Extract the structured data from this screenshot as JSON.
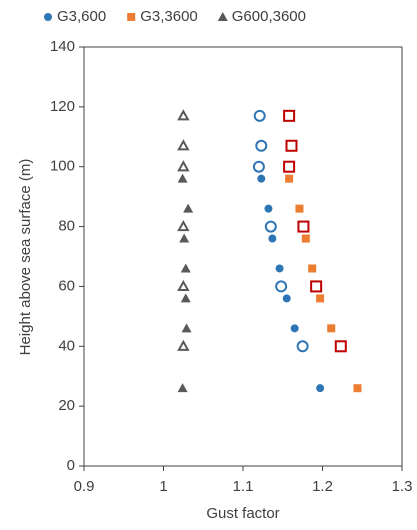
{
  "chart_data": {
    "type": "scatter",
    "xlabel": "Gust factor",
    "ylabel": "Height above sea surface (m)",
    "xlim": [
      0.9,
      1.3
    ],
    "xticks": [
      0.9,
      1,
      1.1,
      1.2,
      1.3
    ],
    "ylim": [
      0,
      140
    ],
    "yticks": [
      0,
      20,
      40,
      60,
      80,
      100,
      120,
      140
    ],
    "legend": "top",
    "series": [
      {
        "name": "G3,600",
        "color": "#2e75b6",
        "marker": "circle",
        "filled": true,
        "x": [
          1.123,
          1.132,
          1.137,
          1.146,
          1.155,
          1.165,
          1.197
        ],
        "values": [
          96,
          86,
          76,
          66,
          56,
          46,
          26
        ]
      },
      {
        "name": "G3,3600",
        "color": "#ed7d31",
        "marker": "square",
        "filled": true,
        "x": [
          1.158,
          1.171,
          1.179,
          1.187,
          1.197,
          1.211,
          1.244
        ],
        "values": [
          96,
          86,
          76,
          66,
          56,
          46,
          26
        ]
      },
      {
        "name": "G600,3600",
        "color": "#595959",
        "marker": "triangle",
        "filled": true,
        "x": [
          1.024,
          1.031,
          1.026,
          1.028,
          1.028,
          1.029,
          1.024
        ],
        "values": [
          96,
          86,
          76,
          66,
          56,
          46,
          26
        ]
      },
      {
        "color": "#2e75b6",
        "marker": "circle",
        "filled": false,
        "x": [
          1.121,
          1.123,
          1.12,
          1.135,
          1.148,
          1.175
        ],
        "values": [
          117,
          107,
          100,
          80,
          60,
          40
        ]
      },
      {
        "color": "#c00000",
        "marker": "square",
        "filled": false,
        "x": [
          1.158,
          1.161,
          1.158,
          1.176,
          1.192,
          1.223
        ],
        "values": [
          117,
          107,
          100,
          80,
          60,
          40
        ]
      },
      {
        "color": "#595959",
        "marker": "triangle",
        "filled": false,
        "x": [
          1.025,
          1.025,
          1.025,
          1.025,
          1.025,
          1.025
        ],
        "values": [
          117,
          107,
          100,
          80,
          60,
          40
        ]
      }
    ]
  }
}
